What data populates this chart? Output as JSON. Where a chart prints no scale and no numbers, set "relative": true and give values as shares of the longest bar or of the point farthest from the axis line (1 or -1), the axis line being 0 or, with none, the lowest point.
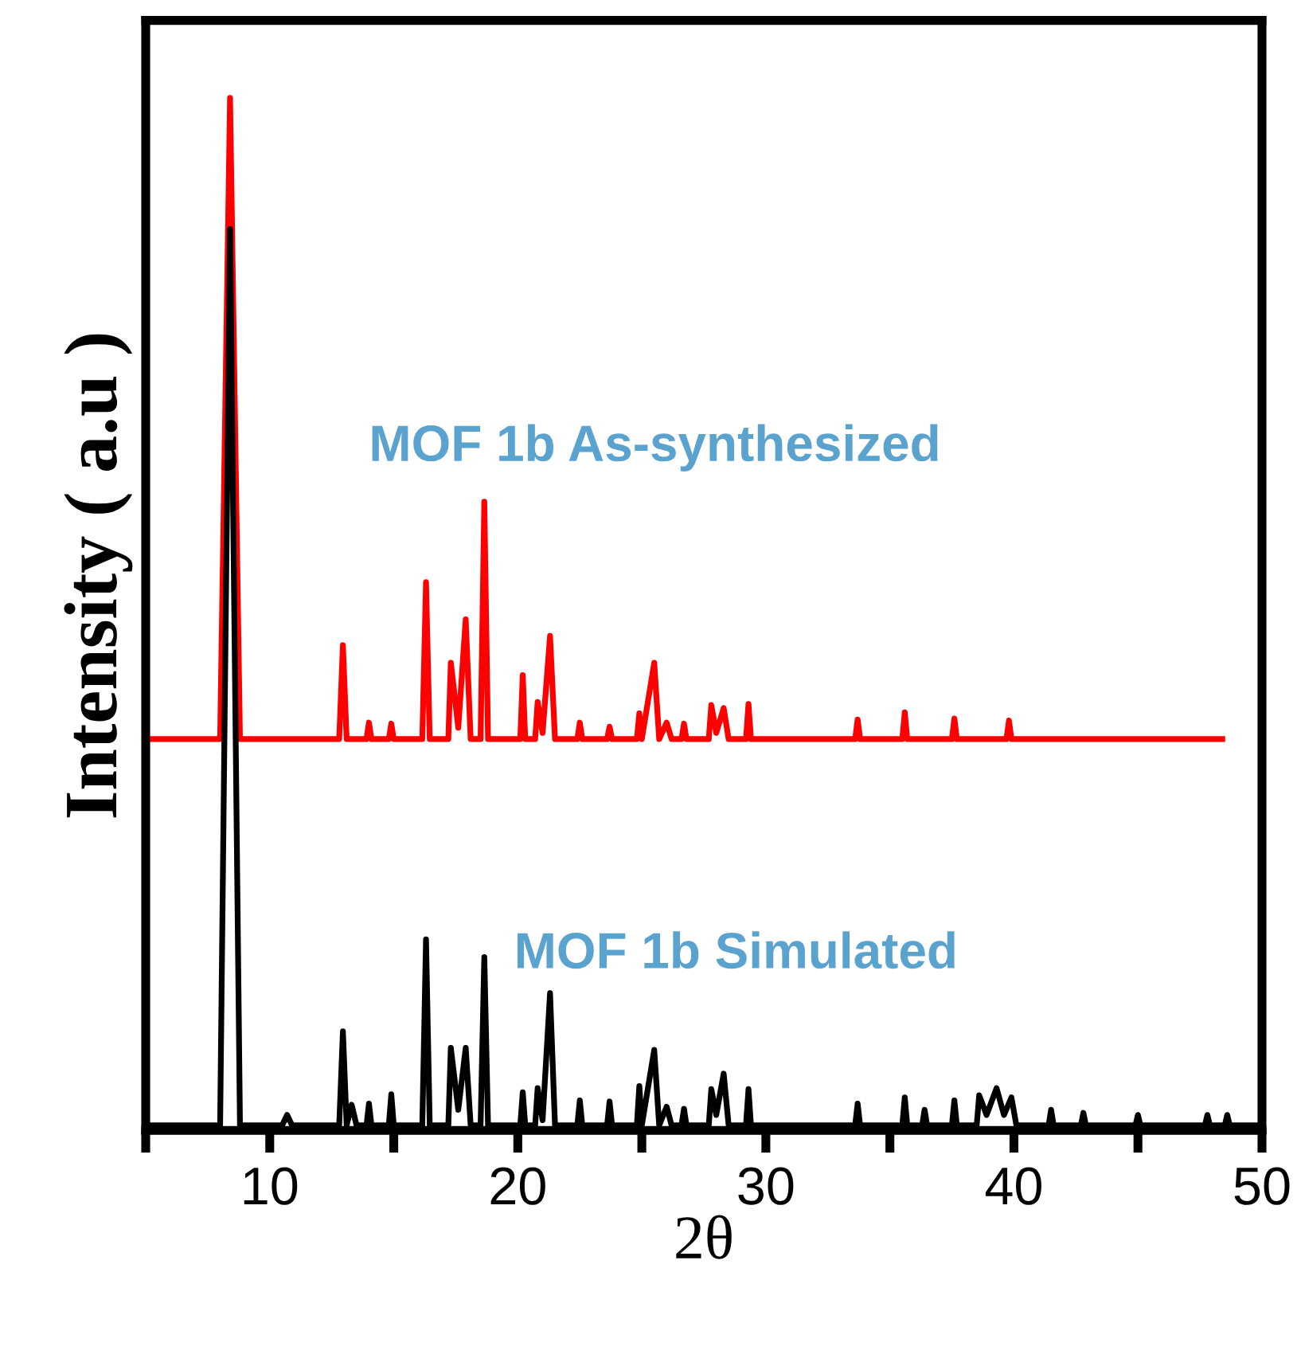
{
  "chart_data": {
    "type": "line",
    "relative": true,
    "xlabel": "2θ",
    "ylabel": "Intensity ( a.u )",
    "xlim": [
      5,
      50
    ],
    "xticks": [
      {
        "value": 5,
        "label": null
      },
      10,
      {
        "value": 15,
        "label": null
      },
      20,
      {
        "value": 25,
        "label": null
      },
      30,
      {
        "value": 35,
        "label": null
      },
      40,
      {
        "value": 45,
        "label": null
      },
      50
    ],
    "tick_labels": "x",
    "grid": false,
    "legend": false,
    "marker": "none",
    "line_style": "solid",
    "series": [
      {
        "name": "MOF 1b As-synthesized",
        "color": "#ff0000",
        "x": [
          5.1,
          8.0,
          8.4,
          8.8,
          12.8,
          12.95,
          13.1,
          13.9,
          14.0,
          14.1,
          14.8,
          14.9,
          15.0,
          16.15,
          16.3,
          16.45,
          17.2,
          17.3,
          17.6,
          17.9,
          18.1,
          18.5,
          18.65,
          18.8,
          20.1,
          20.2,
          20.3,
          20.7,
          20.8,
          21.0,
          21.3,
          21.5,
          22.4,
          22.5,
          22.6,
          23.6,
          23.7,
          23.8,
          24.8,
          24.9,
          25.0,
          25.5,
          25.7,
          26.0,
          26.2,
          26.6,
          26.7,
          26.8,
          27.7,
          27.8,
          28.0,
          28.3,
          28.5,
          29.2,
          29.3,
          29.4,
          33.6,
          33.7,
          33.8,
          35.5,
          35.6,
          35.7,
          37.5,
          37.6,
          37.7,
          39.7,
          39.8,
          39.9,
          48.4
        ],
        "values": [
          0.379,
          0.379,
          1.0,
          0.379,
          0.379,
          0.47,
          0.379,
          0.379,
          0.395,
          0.379,
          0.379,
          0.394,
          0.379,
          0.379,
          0.531,
          0.379,
          0.379,
          0.453,
          0.39,
          0.495,
          0.379,
          0.379,
          0.609,
          0.379,
          0.379,
          0.441,
          0.379,
          0.379,
          0.415,
          0.385,
          0.479,
          0.379,
          0.379,
          0.395,
          0.379,
          0.379,
          0.391,
          0.379,
          0.379,
          0.404,
          0.379,
          0.453,
          0.379,
          0.395,
          0.379,
          0.379,
          0.394,
          0.379,
          0.379,
          0.412,
          0.385,
          0.409,
          0.379,
          0.379,
          0.413,
          0.379,
          0.379,
          0.398,
          0.379,
          0.379,
          0.405,
          0.379,
          0.379,
          0.399,
          0.379,
          0.379,
          0.397,
          0.379,
          0.379
        ]
      },
      {
        "name": "MOF 1b Simulated",
        "color": "#000000",
        "x": [
          5,
          8.0,
          8.4,
          8.8,
          10.5,
          10.7,
          10.9,
          12.8,
          12.95,
          13.1,
          13.3,
          13.5,
          13.9,
          14.0,
          14.1,
          14.8,
          14.9,
          15.0,
          16.15,
          16.3,
          16.45,
          17.2,
          17.3,
          17.6,
          17.9,
          18.1,
          18.5,
          18.65,
          18.8,
          20.1,
          20.2,
          20.3,
          20.7,
          20.8,
          21.0,
          21.3,
          21.5,
          22.4,
          22.5,
          22.6,
          23.6,
          23.7,
          23.8,
          24.8,
          24.9,
          25.0,
          25.5,
          25.7,
          26.0,
          26.2,
          26.6,
          26.7,
          26.8,
          27.7,
          27.8,
          28.0,
          28.3,
          28.5,
          29.2,
          29.3,
          29.4,
          31.5,
          33.6,
          33.7,
          33.8,
          35.5,
          35.6,
          35.7,
          36.3,
          36.4,
          36.5,
          37.5,
          37.6,
          37.7,
          38.5,
          38.6,
          38.9,
          39.3,
          39.6,
          39.9,
          40.1,
          41.4,
          41.5,
          41.6,
          42.7,
          42.8,
          42.9,
          44.9,
          45.0,
          45.1,
          47.7,
          47.8,
          47.9,
          48.5,
          48.6,
          48.7,
          50
        ],
        "values": [
          0.005,
          0.005,
          0.873,
          0.005,
          0.005,
          0.015,
          0.005,
          0.005,
          0.096,
          0.005,
          0.025,
          0.005,
          0.005,
          0.026,
          0.005,
          0.005,
          0.035,
          0.005,
          0.005,
          0.185,
          0.005,
          0.005,
          0.08,
          0.02,
          0.08,
          0.005,
          0.005,
          0.168,
          0.005,
          0.005,
          0.037,
          0.005,
          0.005,
          0.041,
          0.01,
          0.133,
          0.005,
          0.005,
          0.029,
          0.005,
          0.005,
          0.028,
          0.005,
          0.005,
          0.043,
          0.005,
          0.078,
          0.005,
          0.023,
          0.005,
          0.005,
          0.021,
          0.005,
          0.005,
          0.04,
          0.015,
          0.055,
          0.005,
          0.005,
          0.04,
          0.005,
          0.005,
          0.005,
          0.026,
          0.005,
          0.005,
          0.032,
          0.005,
          0.005,
          0.02,
          0.005,
          0.005,
          0.029,
          0.005,
          0.005,
          0.034,
          0.015,
          0.041,
          0.015,
          0.032,
          0.005,
          0.005,
          0.02,
          0.005,
          0.005,
          0.017,
          0.005,
          0.005,
          0.015,
          0.005,
          0.005,
          0.015,
          0.005,
          0.005,
          0.015,
          0.005,
          0.005
        ]
      }
    ]
  }
}
